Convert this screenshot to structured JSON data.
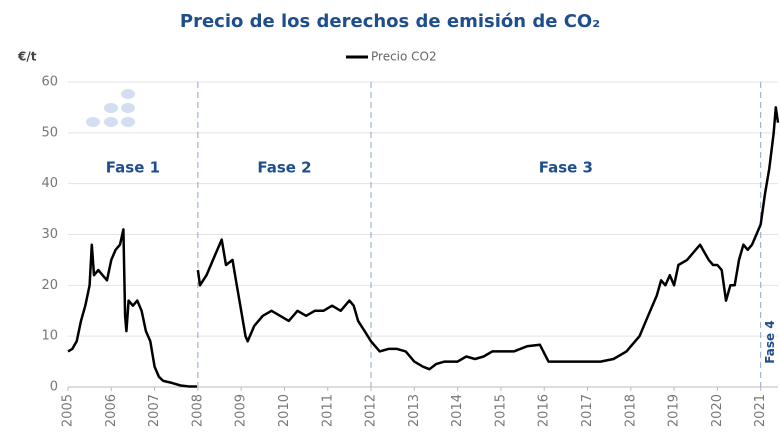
{
  "chart_data": {
    "type": "line",
    "title": "Precio de los derechos de emisión de CO₂",
    "y_unit": "€/t",
    "series": [
      {
        "name": "Precio CO2",
        "color": "#000000",
        "x": [
          2005.0,
          2005.1,
          2005.2,
          2005.3,
          2005.4,
          2005.5,
          2005.55,
          2005.6,
          2005.7,
          2005.8,
          2005.9,
          2006.0,
          2006.1,
          2006.2,
          2006.28,
          2006.32,
          2006.35,
          2006.4,
          2006.5,
          2006.6,
          2006.7,
          2006.8,
          2006.9,
          2007.0,
          2007.1,
          2007.2,
          2007.4,
          2007.6,
          2007.8,
          2007.98,
          2007.99,
          2008.0,
          2008.05,
          2008.2,
          2008.35,
          2008.5,
          2008.55,
          2008.65,
          2008.8,
          2008.9,
          2009.0,
          2009.1,
          2009.15,
          2009.3,
          2009.5,
          2009.7,
          2009.9,
          2010.1,
          2010.3,
          2010.5,
          2010.7,
          2010.9,
          2011.1,
          2011.3,
          2011.5,
          2011.6,
          2011.7,
          2011.85,
          2012.0,
          2012.2,
          2012.4,
          2012.6,
          2012.8,
          2013.0,
          2013.2,
          2013.35,
          2013.5,
          2013.7,
          2014.0,
          2014.2,
          2014.4,
          2014.6,
          2014.8,
          2015.0,
          2015.3,
          2015.6,
          2015.9,
          2016.1,
          2016.3,
          2016.6,
          2016.8,
          2017.0,
          2017.3,
          2017.6,
          2017.9,
          2018.0,
          2018.2,
          2018.4,
          2018.6,
          2018.7,
          2018.8,
          2018.9,
          2019.0,
          2019.1,
          2019.3,
          2019.5,
          2019.6,
          2019.8,
          2019.9,
          2020.0,
          2020.1,
          2020.2,
          2020.3,
          2020.4,
          2020.5,
          2020.6,
          2020.7,
          2020.8,
          2020.9,
          2021.0,
          2021.1,
          2021.2,
          2021.3,
          2021.35,
          2021.4
        ],
        "values": [
          7,
          7.5,
          9,
          13,
          16,
          20,
          28,
          22,
          23,
          22,
          21,
          25,
          27,
          28,
          31,
          14,
          11,
          17,
          16,
          17,
          15,
          11,
          9,
          4,
          2,
          1.2,
          0.8,
          0.3,
          0.1,
          0.1,
          null,
          23,
          20,
          22,
          25,
          28,
          29,
          24,
          25,
          20,
          15,
          10,
          9,
          12,
          14,
          15,
          14,
          13,
          15,
          14,
          15,
          15,
          16,
          15,
          17,
          16,
          13,
          11,
          9,
          7,
          7.5,
          7.5,
          7,
          5,
          4,
          3.5,
          4.5,
          5,
          5,
          6,
          5.5,
          6,
          7,
          7,
          7,
          8,
          8.3,
          5,
          5,
          5,
          5,
          5,
          5,
          5.5,
          7,
          8,
          10,
          14,
          18,
          21,
          20,
          22,
          20,
          24,
          25,
          27,
          28,
          25,
          24,
          24,
          23,
          17,
          20,
          20,
          25,
          28,
          27,
          28,
          30,
          32,
          38,
          43,
          50,
          55,
          52
        ]
      }
    ],
    "phases": [
      {
        "label": "Fase 1",
        "start": 2005
      },
      {
        "label": "Fase 2",
        "start": 2008
      },
      {
        "label": "Fase 3",
        "start": 2012
      },
      {
        "label": "Fase 4",
        "start": 2021
      }
    ],
    "xlim": [
      2005,
      2021.4
    ],
    "xticks": [
      2005,
      2006,
      2007,
      2008,
      2009,
      2010,
      2011,
      2012,
      2013,
      2014,
      2015,
      2016,
      2017,
      2018,
      2019,
      2020,
      2021
    ],
    "ylim": [
      0,
      60
    ],
    "yticks": [
      0,
      10,
      20,
      30,
      40,
      50,
      60
    ],
    "grid": true
  }
}
